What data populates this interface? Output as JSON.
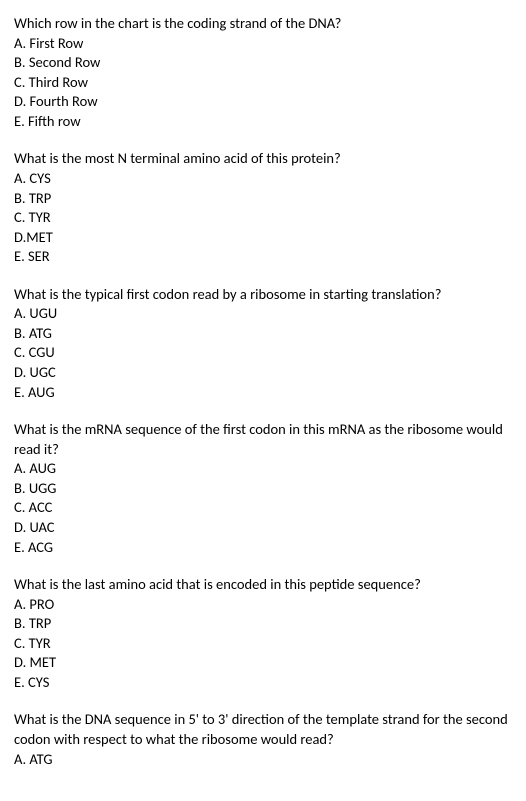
{
  "questions": [
    {
      "text": "Which row in the chart is the coding strand of the DNA?",
      "options": [
        "A. First Row",
        "B. Second Row",
        "C. Third Row",
        "D. Fourth Row",
        "E. Fifth row"
      ]
    },
    {
      "text": "What is the most N terminal amino acid of this protein?",
      "options": [
        "A. CYS",
        "B. TRP",
        "C. TYR",
        "D.MET",
        "E. SER"
      ]
    },
    {
      "text": "What is the typical first codon read by a ribosome in starting translation?",
      "options": [
        "A. UGU",
        "B. ATG",
        "C. CGU",
        "D. UGC",
        "E. AUG"
      ]
    },
    {
      "text": "What is the mRNA sequence of the first codon in this mRNA as the ribosome would read it?",
      "options": [
        "A. AUG",
        "B. UGG",
        "C. ACC",
        "D. UAC",
        "E.  ACG"
      ]
    },
    {
      "text": "What is the last amino acid that is encoded in this peptide sequence?",
      "options": [
        "A.  PRO",
        "B.  TRP",
        "C.  TYR",
        "D.  MET",
        "E. CYS"
      ]
    },
    {
      "text": "What is the DNA sequence in 5' to 3' direction of the template strand for the second codon with respect to what the ribosome would read?",
      "options": [
        "A. ATG"
      ]
    }
  ]
}
